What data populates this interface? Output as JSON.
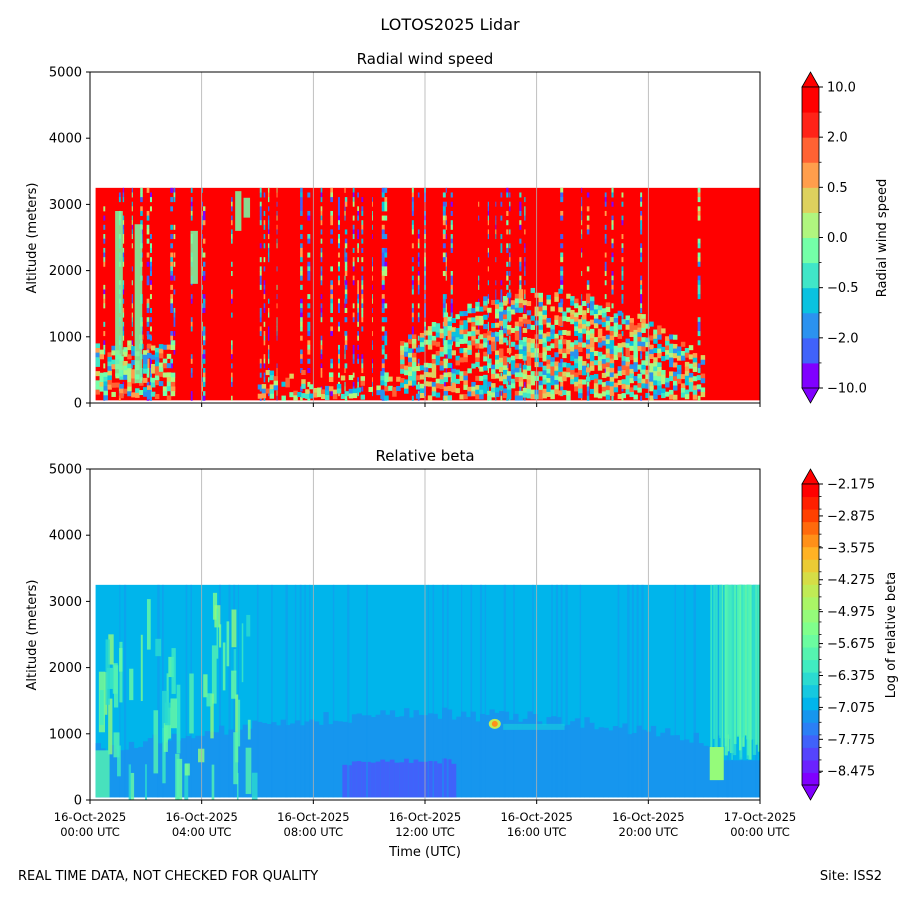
{
  "figure_title": "LOTOS2025 Lidar",
  "footer_left": "REAL TIME DATA, NOT CHECKED FOR QUALITY",
  "footer_right": "Site: ISS2",
  "xlabel": "Time (UTC)",
  "x_ticks": [
    {
      "date": "16-Oct-2025",
      "time": "00:00 UTC"
    },
    {
      "date": "16-Oct-2025",
      "time": "04:00 UTC"
    },
    {
      "date": "16-Oct-2025",
      "time": "08:00 UTC"
    },
    {
      "date": "16-Oct-2025",
      "time": "12:00 UTC"
    },
    {
      "date": "16-Oct-2025",
      "time": "16:00 UTC"
    },
    {
      "date": "16-Oct-2025",
      "time": "20:00 UTC"
    },
    {
      "date": "17-Oct-2025",
      "time": "00:00 UTC"
    }
  ],
  "chart_data": [
    {
      "type": "heatmap",
      "title": "Radial wind speed",
      "ylabel": "Altitude (meters)",
      "xlabel": "Time (UTC)",
      "x_hours_range": [
        0,
        24
      ],
      "ylim": [
        0,
        5000
      ],
      "y_ticks": [
        "0",
        "1000",
        "2000",
        "3000",
        "4000",
        "5000"
      ],
      "data_top_altitude": 3250,
      "colorbar_label": "Radial wind speed",
      "colorbar_ticks": [
        "10.0",
        "2.0",
        "0.5",
        "0.0",
        "−0.5",
        "−2.0",
        "−10.0"
      ],
      "colorbar_colors": [
        "#8000ff",
        "#4062fa",
        "#2b92ef",
        "#0ac2e0",
        "#40e6c8",
        "#74ffa8",
        "#b0f67f",
        "#ddd15e",
        "#ff9e4c",
        "#ff6233",
        "#ff2318",
        "#ff0000"
      ],
      "wind_pattern": {
        "dominant": "red (positive, >10) throughout",
        "mixed_band_hours": [
          11,
          22
        ],
        "mixed_band_top_altitude": 1600,
        "vertical_streaks": "blue/purple streaks across full column"
      }
    },
    {
      "type": "heatmap",
      "title": "Relative beta",
      "ylabel": "Altitude (meters)",
      "xlabel": "Time (UTC)",
      "x_hours_range": [
        0,
        24
      ],
      "ylim": [
        0,
        5000
      ],
      "y_ticks": [
        "0",
        "1000",
        "2000",
        "3000",
        "4000",
        "5000"
      ],
      "data_top_altitude": 3250,
      "colorbar_label": "Log of relative beta",
      "colorbar_ticks": [
        "−2.175",
        "−2.875",
        "−3.575",
        "−4.275",
        "−4.975",
        "−5.675",
        "−6.375",
        "−7.075",
        "−7.775",
        "−8.475"
      ],
      "colorbar_colors": [
        "#8000ff",
        "#6b22fe",
        "#5544fd",
        "#4062fa",
        "#2b7ff5",
        "#1696ee",
        "#00b5eb",
        "#16c8e0",
        "#2bdbd0",
        "#40ecc1",
        "#55f4b0",
        "#6bfca0",
        "#80ff8c",
        "#95fb7a",
        "#aaf566",
        "#c0eb55",
        "#d5dd46",
        "#eacb35",
        "#ffb224",
        "#ff9018",
        "#ff6a0c",
        "#ff4000",
        "#ff2000",
        "#ff0000"
      ],
      "beta_pattern": {
        "background": "light blue (about -7.1)",
        "lower_layer_top_altitude": 1200,
        "lower_layer_value": "blue (about -7.8)",
        "early_plumes_hours": [
          0,
          6
        ],
        "late_cloud_hours": [
          22.2,
          24
        ],
        "aerosol_spot_hours": 14.5,
        "aerosol_spot_altitude": 1150
      }
    }
  ]
}
